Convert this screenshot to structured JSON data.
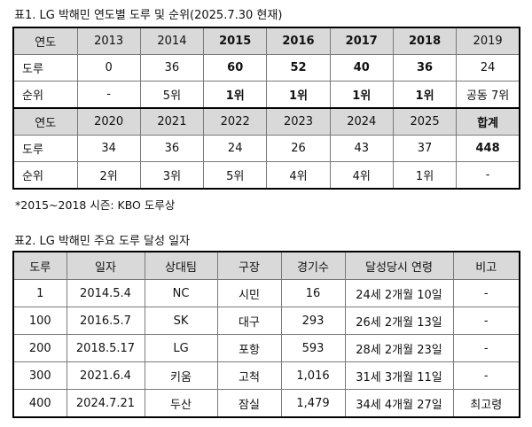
{
  "table1": {
    "caption": "표1. LG 박해민 연도별 도루 및 순위(2025.7.30 현재)",
    "block1": {
      "header": [
        "연도",
        "2013",
        "2014",
        "2015",
        "2016",
        "2017",
        "2018",
        "2019"
      ],
      "steals": [
        "도루",
        "0",
        "36",
        "60",
        "52",
        "40",
        "36",
        "24"
      ],
      "rank": [
        "순위",
        "-",
        "5위",
        "1위",
        "1위",
        "1위",
        "1위",
        "공동 7위"
      ]
    },
    "block2": {
      "header": [
        "연도",
        "2020",
        "2021",
        "2022",
        "2023",
        "2024",
        "2025",
        "합계"
      ],
      "steals": [
        "도루",
        "34",
        "36",
        "24",
        "26",
        "43",
        "37",
        "448"
      ],
      "rank": [
        "순위",
        "2위",
        "3위",
        "5위",
        "4위",
        "4위",
        "1위",
        "-"
      ]
    },
    "note": "*2015~2018 시즌: KBO 도루상"
  },
  "table2": {
    "caption": "표2. LG 박해민 주요 도루 달성 일자",
    "headers": [
      "도루",
      "일자",
      "상대팀",
      "구장",
      "경기수",
      "달성당시 연령",
      "비고"
    ],
    "rows": [
      [
        "1",
        "2014.5.4",
        "NC",
        "시민",
        "16",
        "24세 2개월 10일",
        "-"
      ],
      [
        "100",
        "2016.5.7",
        "SK",
        "대구",
        "293",
        "26세 2개월 13일",
        "-"
      ],
      [
        "200",
        "2018.5.17",
        "LG",
        "포항",
        "593",
        "28세 2개월 23일",
        "-"
      ],
      [
        "300",
        "2021.6.4",
        "키움",
        "고척",
        "1,016",
        "31세 3개월 11일",
        "-"
      ],
      [
        "400",
        "2024.7.21",
        "두산",
        "잠실",
        "1,479",
        "34세 4개월 27일",
        "최고령"
      ]
    ]
  }
}
